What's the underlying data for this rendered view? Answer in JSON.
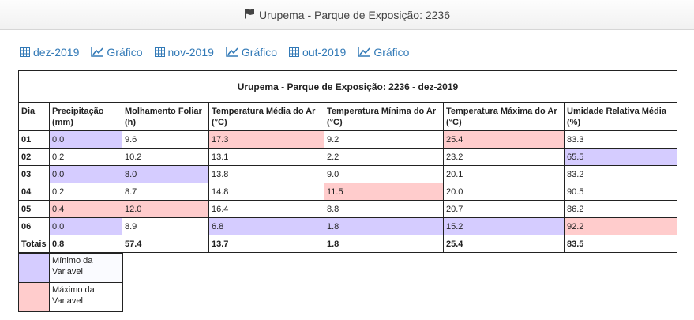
{
  "header": {
    "title": "Urupema - Parque de Exposição: 2236"
  },
  "links": [
    {
      "type": "table",
      "label": "dez-2019"
    },
    {
      "type": "chart",
      "label": "Gráfico"
    },
    {
      "type": "table",
      "label": "nov-2019"
    },
    {
      "type": "chart",
      "label": "Gráfico"
    },
    {
      "type": "table",
      "label": "out-2019"
    },
    {
      "type": "chart",
      "label": "Gráfico"
    }
  ],
  "table": {
    "caption": "Urupema - Parque de Exposição: 2236 - dez-2019",
    "columns": [
      "Dia",
      "Precipitação (mm)",
      "Molhamento Foliar (h)",
      "Temperatura Média do Ar (°C)",
      "Temperatura Mínima do Ar (°C)",
      "Temperatura Máxima do Ar (°C)",
      "Umidade Relativa Média (%)"
    ],
    "rows": [
      {
        "cells": [
          "01",
          "0.0",
          "9.6",
          "17.3",
          "9.2",
          "25.4",
          "83.3"
        ],
        "hl": [
          "",
          "min",
          "",
          "max",
          "",
          "max",
          ""
        ]
      },
      {
        "cells": [
          "02",
          "0.2",
          "10.2",
          "13.1",
          "2.2",
          "23.2",
          "65.5"
        ],
        "hl": [
          "",
          "",
          "",
          "",
          "",
          "",
          "min"
        ]
      },
      {
        "cells": [
          "03",
          "0.0",
          "8.0",
          "13.8",
          "9.0",
          "20.1",
          "83.2"
        ],
        "hl": [
          "",
          "min",
          "min",
          "",
          "",
          "",
          ""
        ]
      },
      {
        "cells": [
          "04",
          "0.2",
          "8.7",
          "14.8",
          "11.5",
          "20.0",
          "90.5"
        ],
        "hl": [
          "",
          "",
          "",
          "",
          "max",
          "",
          ""
        ]
      },
      {
        "cells": [
          "05",
          "0.4",
          "12.0",
          "16.4",
          "8.8",
          "20.7",
          "86.2"
        ],
        "hl": [
          "",
          "max",
          "max",
          "",
          "",
          "",
          ""
        ]
      },
      {
        "cells": [
          "06",
          "0.0",
          "8.9",
          "6.8",
          "1.8",
          "15.2",
          "92.2"
        ],
        "hl": [
          "",
          "min",
          "",
          "min",
          "min",
          "min",
          "max"
        ]
      }
    ],
    "totals": [
      "Totais",
      "0.8",
      "57.4",
      "13.7",
      "1.8",
      "25.4",
      "83.5"
    ]
  },
  "legend": {
    "min_label": "Mínimo da Variavel",
    "max_label": "Máximo da Variavel",
    "min_color": "#d5ccff",
    "max_color": "#ffcccc"
  },
  "colors": {
    "link": "#337ab7"
  }
}
